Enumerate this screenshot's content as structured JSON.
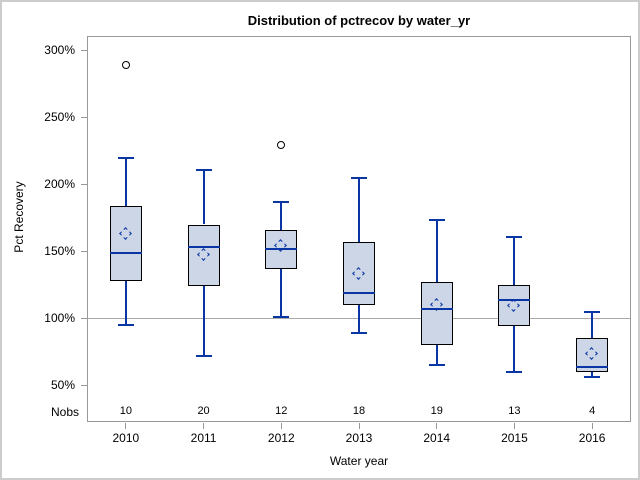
{
  "chart_data": {
    "type": "boxplot",
    "title": "Distribution of pctrecov by water_yr",
    "xlabel": "Water year",
    "ylabel": "Pct Recovery",
    "nobs_label": "Nobs",
    "categories": [
      "2010",
      "2011",
      "2012",
      "2013",
      "2014",
      "2015",
      "2016"
    ],
    "nobs": [
      10,
      20,
      12,
      18,
      19,
      13,
      4
    ],
    "y_ticks": [
      300,
      250,
      200,
      150,
      100,
      50
    ],
    "y_tick_suffix": "%",
    "ylim": [
      40,
      310
    ],
    "reference_line": 100,
    "grid": false,
    "boxes": [
      {
        "category": "2010",
        "min": 95,
        "q1": 128,
        "median": 149,
        "q3": 184,
        "max": 220,
        "mean": 163,
        "outliers": [
          289
        ]
      },
      {
        "category": "2011",
        "min": 72,
        "q1": 124,
        "median": 153,
        "q3": 170,
        "max": 211,
        "mean": 147,
        "outliers": []
      },
      {
        "category": "2012",
        "min": 101,
        "q1": 137,
        "median": 152,
        "q3": 166,
        "max": 187,
        "mean": 154,
        "outliers": [
          229
        ]
      },
      {
        "category": "2013",
        "min": 89,
        "q1": 110,
        "median": 119,
        "q3": 157,
        "max": 205,
        "mean": 133,
        "outliers": []
      },
      {
        "category": "2014",
        "min": 65,
        "q1": 80,
        "median": 107,
        "q3": 127,
        "max": 173,
        "mean": 110,
        "outliers": []
      },
      {
        "category": "2015",
        "min": 60,
        "q1": 94,
        "median": 114,
        "q3": 125,
        "max": 161,
        "mean": 109,
        "outliers": []
      },
      {
        "category": "2016",
        "min": 56,
        "q1": 60,
        "median": 64,
        "q3": 85,
        "max": 105,
        "mean": 73,
        "outliers": []
      }
    ]
  },
  "colors": {
    "box_fill": "#ccd6e7",
    "box_border": "#000000",
    "whisker": "#0a36a5",
    "median": "#0a36a5",
    "mean_marker": "#0a36a5",
    "outlier": "#000000",
    "reference_line": "#aaaaaa",
    "frame": "#999999",
    "text": "#000000",
    "outer_border": "#cccccc"
  }
}
